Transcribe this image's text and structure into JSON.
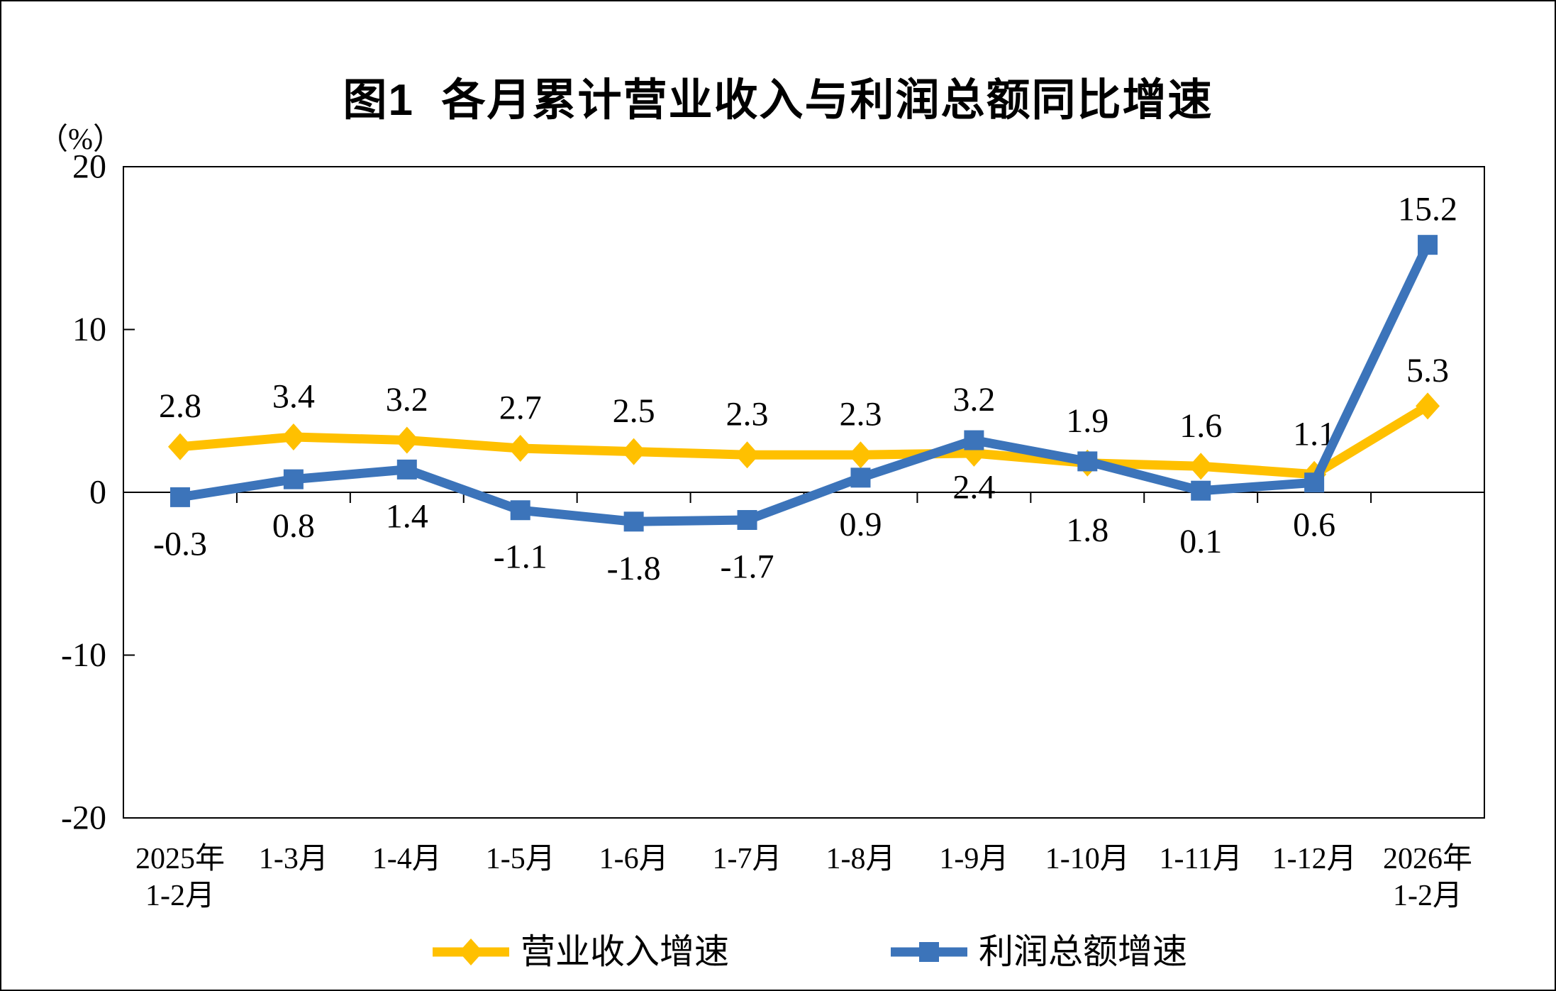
{
  "chart_data": {
    "type": "line",
    "title": "图1  各月累计营业收入与利润总额同比增速",
    "unit_label": "（%）",
    "categories": [
      [
        "2025年",
        "1-2月"
      ],
      [
        "1-3月"
      ],
      [
        "1-4月"
      ],
      [
        "1-5月"
      ],
      [
        "1-6月"
      ],
      [
        "1-7月"
      ],
      [
        "1-8月"
      ],
      [
        "1-9月"
      ],
      [
        "1-10月"
      ],
      [
        "1-11月"
      ],
      [
        "1-12月"
      ],
      [
        "2026年",
        "1-2月"
      ]
    ],
    "series": [
      {
        "name": "营业收入增速",
        "marker": "diamond",
        "color": "#FFC000",
        "values": [
          2.8,
          3.4,
          3.2,
          2.7,
          2.5,
          2.3,
          2.3,
          2.4,
          1.8,
          1.6,
          1.1,
          5.3
        ],
        "label_side": [
          "above",
          "above",
          "above",
          "above",
          "above",
          "above",
          "above",
          "below",
          "below",
          "above",
          "above",
          "above"
        ]
      },
      {
        "name": "利润总额增速",
        "marker": "square",
        "color": "#3C74BA",
        "values": [
          -0.3,
          0.8,
          1.4,
          -1.1,
          -1.8,
          -1.7,
          0.9,
          3.2,
          1.9,
          0.1,
          0.6,
          15.2
        ],
        "label_side": [
          "below",
          "below",
          "below",
          "below",
          "below",
          "below",
          "below",
          "above",
          "above",
          "below",
          "below",
          "above"
        ]
      }
    ],
    "ylim": [
      -20,
      20
    ],
    "yticks": [
      20,
      10,
      0,
      -10,
      -20
    ],
    "grid": false,
    "zero_line": true,
    "legend_position": "bottom",
    "axis_color": "#000000",
    "label_color": "#000000"
  }
}
